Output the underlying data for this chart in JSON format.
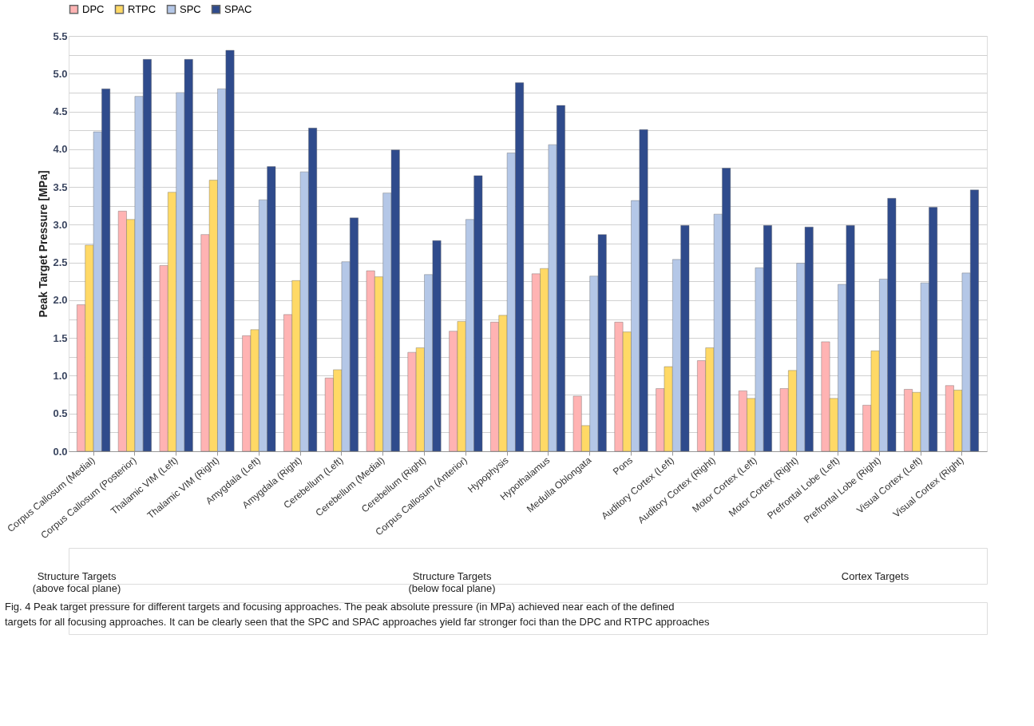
{
  "chart_data": {
    "type": "bar",
    "ylabel": "Peak Target Pressure [MPa]",
    "categories": [
      "Corpus Callosum (Medial)",
      "Corpus Callosum (Posterior)",
      "Thalamic VIM (Left)",
      "Thalamic VIM (Right)",
      "Amygdala (Left)",
      "Amygdala (Right)",
      "Cerebellum (Left)",
      "Cerebellum (Medial)",
      "Cerebellum (Right)",
      "Corpus Callosum (Anterior)",
      "Hypophysis",
      "Hypothalamus",
      "Medulla Oblongata",
      "Pons",
      "Auditory Cortex (Left)",
      "Auditory Cortex (Right)",
      "Motor Cortex (Left)",
      "Motor Cortex (Right)",
      "Prefrontal Lobe (Left)",
      "Prefrontal Lobe (Right)",
      "Visual Cortex (Left)",
      "Visual Cortex (Right)"
    ],
    "series": [
      {
        "name": "DPC",
        "color": "#ffb3b3",
        "values": [
          1.94,
          3.18,
          2.46,
          2.87,
          1.53,
          1.81,
          0.97,
          2.39,
          1.31,
          1.59,
          1.71,
          2.35,
          0.73,
          1.71,
          0.83,
          1.2,
          0.8,
          0.83,
          1.45,
          0.61,
          0.82,
          0.87
        ]
      },
      {
        "name": "RTPC",
        "color": "#ffd966",
        "values": [
          2.73,
          3.07,
          3.43,
          3.59,
          1.61,
          2.26,
          1.08,
          2.31,
          1.37,
          1.72,
          1.8,
          2.42,
          0.34,
          1.58,
          1.12,
          1.37,
          0.7,
          1.07,
          0.7,
          1.33,
          0.78,
          0.81
        ]
      },
      {
        "name": "SPC",
        "color": "#b4c7e7",
        "values": [
          4.23,
          4.7,
          4.75,
          4.8,
          3.33,
          3.7,
          2.51,
          3.42,
          2.34,
          3.07,
          3.95,
          4.06,
          2.32,
          3.32,
          2.54,
          3.14,
          2.43,
          2.49,
          2.21,
          2.28,
          2.23,
          2.36
        ]
      },
      {
        "name": "SPAC",
        "color": "#2f4b8c",
        "values": [
          4.8,
          5.19,
          5.19,
          5.31,
          3.77,
          4.28,
          3.09,
          3.99,
          2.79,
          3.65,
          4.88,
          4.58,
          2.87,
          4.26,
          2.99,
          3.75,
          2.99,
          2.97,
          2.99,
          3.35,
          3.23,
          3.46
        ]
      }
    ],
    "ylim": [
      0,
      5.5
    ],
    "yticks": [
      {
        "value": 0,
        "label": "0.0"
      },
      {
        "value": 0.25,
        "label": null
      },
      {
        "value": 0.5,
        "label": "0.5"
      },
      {
        "value": 0.75,
        "label": null
      },
      {
        "value": 1,
        "label": "1.0"
      },
      {
        "value": 1.25,
        "label": null
      },
      {
        "value": 1.5,
        "label": "1.5"
      },
      {
        "value": 1.75,
        "label": null
      },
      {
        "value": 2,
        "label": "2.0"
      },
      {
        "value": 2.25,
        "label": null
      },
      {
        "value": 2.5,
        "label": "2.5"
      },
      {
        "value": 2.75,
        "label": null
      },
      {
        "value": 3,
        "label": "3.0"
      },
      {
        "value": 3.25,
        "label": null
      },
      {
        "value": 3.5,
        "label": "3.5"
      },
      {
        "value": 3.75,
        "label": null
      },
      {
        "value": 4,
        "label": "4.0"
      },
      {
        "value": 4.25,
        "label": null
      },
      {
        "value": 4.5,
        "label": "4.5"
      },
      {
        "value": 4.75,
        "label": null
      },
      {
        "value": 5,
        "label": "5.0"
      },
      {
        "value": 5.25,
        "label": null
      },
      {
        "value": 5.5,
        "label": "5.5"
      }
    ],
    "grid": "y",
    "legend": "top",
    "annotations": [
      "Structure Targets\n(above focal plane)",
      "Structure Targets\n(below focal plane)",
      "Cortex Targets",
      "Fig. 4 Peak target pressure for different targets and focusing approaches. The peak absolute pressure (in MPa) achieved near each of the defined\ntargets for all focusing approaches. It can be clearly seen that the SPC and SPAC approaches yield far stronger foci than the DPC and RTPC approaches"
    ]
  }
}
